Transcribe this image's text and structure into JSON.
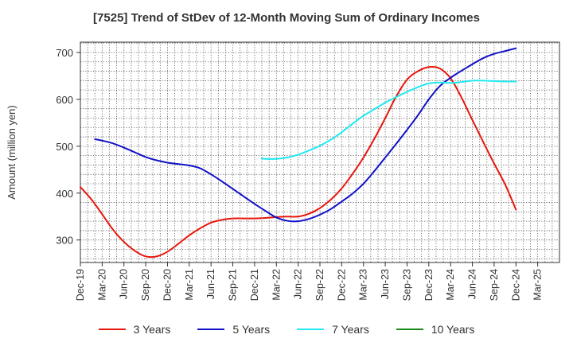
{
  "chart_data": {
    "type": "line",
    "title": "[7525]  Trend of StDev of 12-Month Moving Sum of Ordinary Incomes",
    "xlabel": "",
    "ylabel": "Amount (million yen)",
    "ylim": [
      252,
      722
    ],
    "yticks": [
      300,
      400,
      500,
      600,
      700
    ],
    "categories": [
      "Dec-19",
      "Mar-20",
      "Jun-20",
      "Sep-20",
      "Dec-20",
      "Mar-21",
      "Jun-21",
      "Sep-21",
      "Dec-21",
      "Mar-22",
      "Jun-22",
      "Sep-22",
      "Dec-22",
      "Mar-23",
      "Jun-23",
      "Sep-23",
      "Dec-23",
      "Mar-24",
      "Jun-24",
      "Sep-24",
      "Dec-24",
      "Mar-25"
    ],
    "grid": true,
    "legend_position": "bottom",
    "series": [
      {
        "name": "3 Years",
        "color": "#e8160c",
        "x": [
          0,
          0.5,
          1,
          1.5,
          2,
          2.5,
          3,
          3.5,
          4,
          4.5,
          5,
          5.5,
          6,
          6.5,
          7,
          7.5,
          8,
          8.5,
          9,
          9.5,
          10,
          10.5,
          11,
          11.5,
          12,
          12.5,
          13,
          13.5,
          14,
          14.5,
          15,
          15.5,
          16,
          16.5,
          17,
          17.5,
          18,
          18.5,
          19,
          19.5,
          20
        ],
        "values": [
          413,
          387,
          355,
          322,
          296,
          277,
          265,
          265,
          275,
          292,
          310,
          325,
          337,
          343,
          346,
          346,
          346,
          347,
          349,
          350,
          350,
          356,
          368,
          386,
          410,
          441,
          476,
          516,
          560,
          606,
          642,
          660,
          669,
          666,
          645,
          604,
          556,
          509,
          463,
          419,
          365
        ]
      },
      {
        "name": "5 Years",
        "color": "#1111c8",
        "x": [
          0.67,
          1,
          1.5,
          2,
          2.5,
          3,
          3.5,
          4,
          4.5,
          5,
          5.5,
          6,
          6.5,
          7,
          7.5,
          8,
          8.5,
          9,
          9.5,
          10,
          10.5,
          11,
          11.5,
          12,
          12.5,
          13,
          13.5,
          14,
          14.5,
          15,
          15.5,
          16,
          16.5,
          17,
          17.5,
          18,
          18.5,
          19,
          19.5,
          20
        ],
        "values": [
          515,
          512,
          506,
          497,
          487,
          477,
          470,
          465,
          462,
          459,
          453,
          440,
          425,
          409,
          393,
          377,
          362,
          348,
          341,
          340,
          345,
          354,
          366,
          382,
          399,
          420,
          447,
          476,
          505,
          535,
          566,
          600,
          628,
          646,
          661,
          675,
          688,
          697,
          703,
          709
        ]
      },
      {
        "name": "7 Years",
        "color": "#22e8f0",
        "x": [
          8.33,
          8.5,
          9,
          9.5,
          10,
          10.5,
          11,
          11.5,
          12,
          12.5,
          13,
          13.5,
          14,
          14.5,
          15,
          15.5,
          16,
          16.5,
          17,
          17.5,
          18,
          18.5,
          19,
          19.5,
          20
        ],
        "values": [
          474,
          473,
          473,
          476,
          482,
          491,
          501,
          514,
          530,
          548,
          565,
          579,
          593,
          605,
          616,
          626,
          634,
          636,
          635,
          637,
          640,
          640,
          639,
          638,
          638
        ]
      },
      {
        "name": "10 Years",
        "color": "#1a8a1a",
        "x": [],
        "values": []
      }
    ]
  }
}
